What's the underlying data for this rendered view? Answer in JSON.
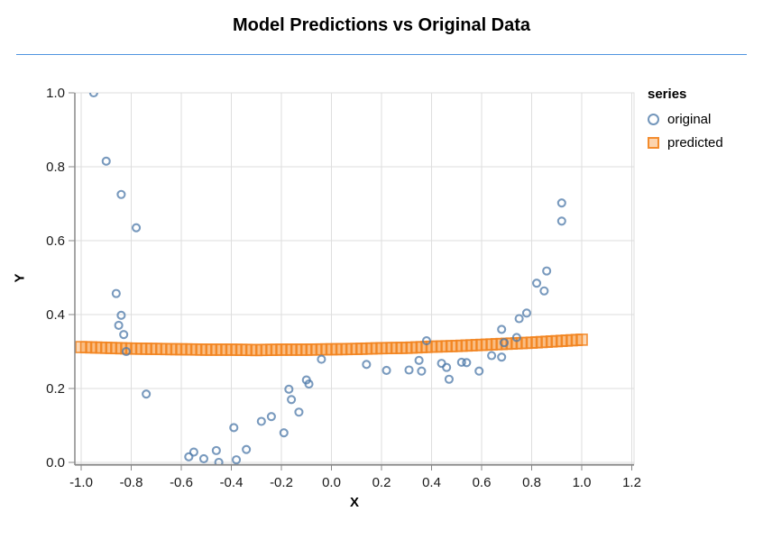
{
  "header": {
    "title": "Model Predictions vs Original Data"
  },
  "legend": {
    "title": "series",
    "items": [
      {
        "label": "original",
        "marker": "circle",
        "color": "#4c78a8"
      },
      {
        "label": "predicted",
        "marker": "square",
        "color": "#f58518"
      }
    ]
  },
  "colors": {
    "original_stroke": "#4c78a8",
    "predicted_stroke": "#f28522",
    "predicted_fill": "#f58518",
    "grid": "#dedede",
    "axis": "#888888",
    "label": "#1a1a1a",
    "divider": "#4f94e0"
  },
  "chart_data": {
    "type": "scatter",
    "title": "Model Predictions vs Original Data",
    "xlabel": "X",
    "ylabel": "Y",
    "grid": true,
    "legend_position": "right",
    "x_axis": {
      "range": [
        -1.03,
        1.21
      ],
      "tick_values": [
        -1.0,
        -0.8,
        -0.6,
        -0.4,
        -0.2,
        0.0,
        0.2,
        0.4,
        0.6,
        0.8,
        1.0,
        1.2
      ],
      "tick_labels": [
        "-1.0",
        "-0.8",
        "-0.6",
        "-0.4",
        "-0.2",
        "0.0",
        "0.2",
        "0.4",
        "0.6",
        "0.8",
        "1.0",
        "1.2"
      ]
    },
    "y_axis": {
      "range": [
        0.0,
        1.0
      ],
      "tick_values": [
        0.0,
        0.2,
        0.4,
        0.6,
        0.8,
        1.0
      ],
      "tick_labels": [
        "0.0",
        "0.2",
        "0.4",
        "0.6",
        "0.8",
        "1.0"
      ]
    },
    "series": [
      {
        "name": "original",
        "marker": "circle",
        "color": "#4c78a8",
        "points": [
          [
            -0.95,
            1.0
          ],
          [
            -0.9,
            0.815
          ],
          [
            -0.84,
            0.725
          ],
          [
            -0.78,
            0.635
          ],
          [
            -0.86,
            0.457
          ],
          [
            -0.84,
            0.398
          ],
          [
            -0.85,
            0.371
          ],
          [
            -0.83,
            0.346
          ],
          [
            -0.82,
            0.3
          ],
          [
            -0.74,
            0.185
          ],
          [
            -0.57,
            0.015
          ],
          [
            -0.55,
            0.028
          ],
          [
            -0.51,
            0.01
          ],
          [
            -0.46,
            0.032
          ],
          [
            -0.45,
            0.0
          ],
          [
            -0.39,
            0.094
          ],
          [
            -0.38,
            0.007
          ],
          [
            -0.34,
            0.035
          ],
          [
            -0.28,
            0.111
          ],
          [
            -0.24,
            0.124
          ],
          [
            -0.19,
            0.08
          ],
          [
            -0.17,
            0.198
          ],
          [
            -0.16,
            0.17
          ],
          [
            -0.13,
            0.136
          ],
          [
            -0.1,
            0.223
          ],
          [
            -0.09,
            0.212
          ],
          [
            -0.04,
            0.279
          ],
          [
            0.14,
            0.265
          ],
          [
            0.22,
            0.249
          ],
          [
            0.31,
            0.25
          ],
          [
            0.35,
            0.276
          ],
          [
            0.36,
            0.247
          ],
          [
            0.38,
            0.329
          ],
          [
            0.44,
            0.268
          ],
          [
            0.46,
            0.257
          ],
          [
            0.47,
            0.225
          ],
          [
            0.52,
            0.271
          ],
          [
            0.54,
            0.27
          ],
          [
            0.59,
            0.247
          ],
          [
            0.64,
            0.289
          ],
          [
            0.68,
            0.285
          ],
          [
            0.68,
            0.36
          ],
          [
            0.69,
            0.324
          ],
          [
            0.74,
            0.338
          ],
          [
            0.75,
            0.389
          ],
          [
            0.78,
            0.404
          ],
          [
            0.82,
            0.485
          ],
          [
            0.85,
            0.464
          ],
          [
            0.86,
            0.518
          ],
          [
            0.92,
            0.702
          ],
          [
            0.92,
            0.653
          ]
        ]
      },
      {
        "name": "predicted",
        "marker": "square",
        "color": "#f58518",
        "points": [
          [
            -1.0,
            0.312
          ],
          [
            -0.9,
            0.31
          ],
          [
            -0.8,
            0.308
          ],
          [
            -0.7,
            0.307
          ],
          [
            -0.6,
            0.306
          ],
          [
            -0.5,
            0.305
          ],
          [
            -0.4,
            0.305
          ],
          [
            -0.3,
            0.304
          ],
          [
            -0.2,
            0.305
          ],
          [
            -0.1,
            0.305
          ],
          [
            0.0,
            0.306
          ],
          [
            0.1,
            0.307
          ],
          [
            0.2,
            0.309
          ],
          [
            0.3,
            0.31
          ],
          [
            0.4,
            0.313
          ],
          [
            0.5,
            0.315
          ],
          [
            0.6,
            0.318
          ],
          [
            0.7,
            0.321
          ],
          [
            0.8,
            0.324
          ],
          [
            0.9,
            0.328
          ],
          [
            1.0,
            0.332
          ]
        ]
      }
    ]
  }
}
